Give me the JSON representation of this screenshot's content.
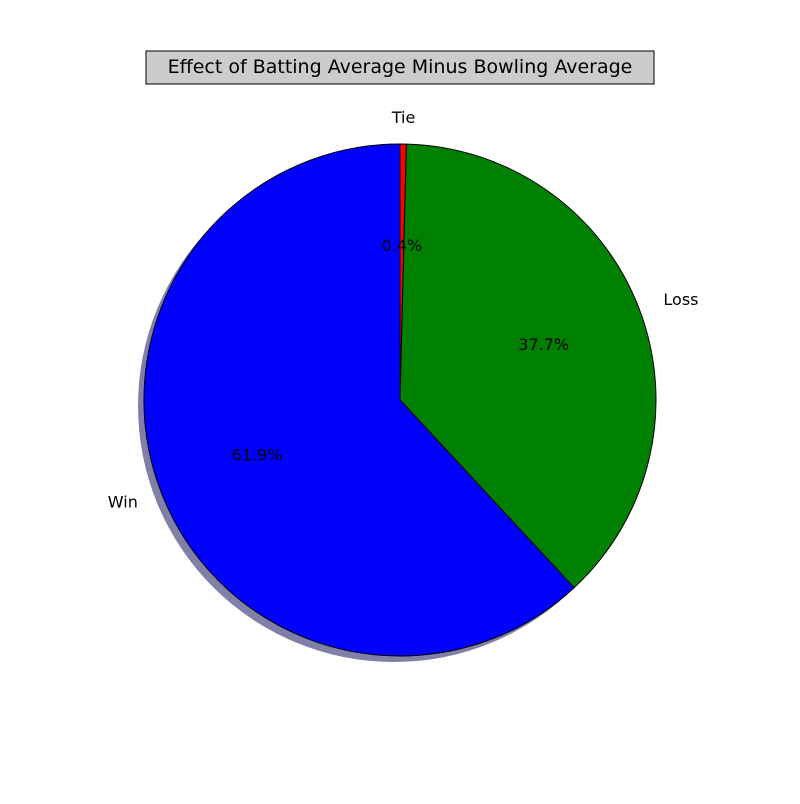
{
  "chart_data": {
    "type": "pie",
    "title": "Effect of Batting Average Minus Bowling Average",
    "slices": [
      {
        "label": "Tie",
        "value": 0.4,
        "pct_label": "0.4%",
        "color": "#ff0000"
      },
      {
        "label": "Loss",
        "value": 37.7,
        "pct_label": "37.7%",
        "color": "#008000"
      },
      {
        "label": "Win",
        "value": 61.9,
        "pct_label": "61.9%",
        "color": "#0000ff"
      }
    ],
    "start_angle_deg": 90,
    "direction": "clockwise",
    "shadow": true,
    "title_box_color": "#cccccc"
  }
}
